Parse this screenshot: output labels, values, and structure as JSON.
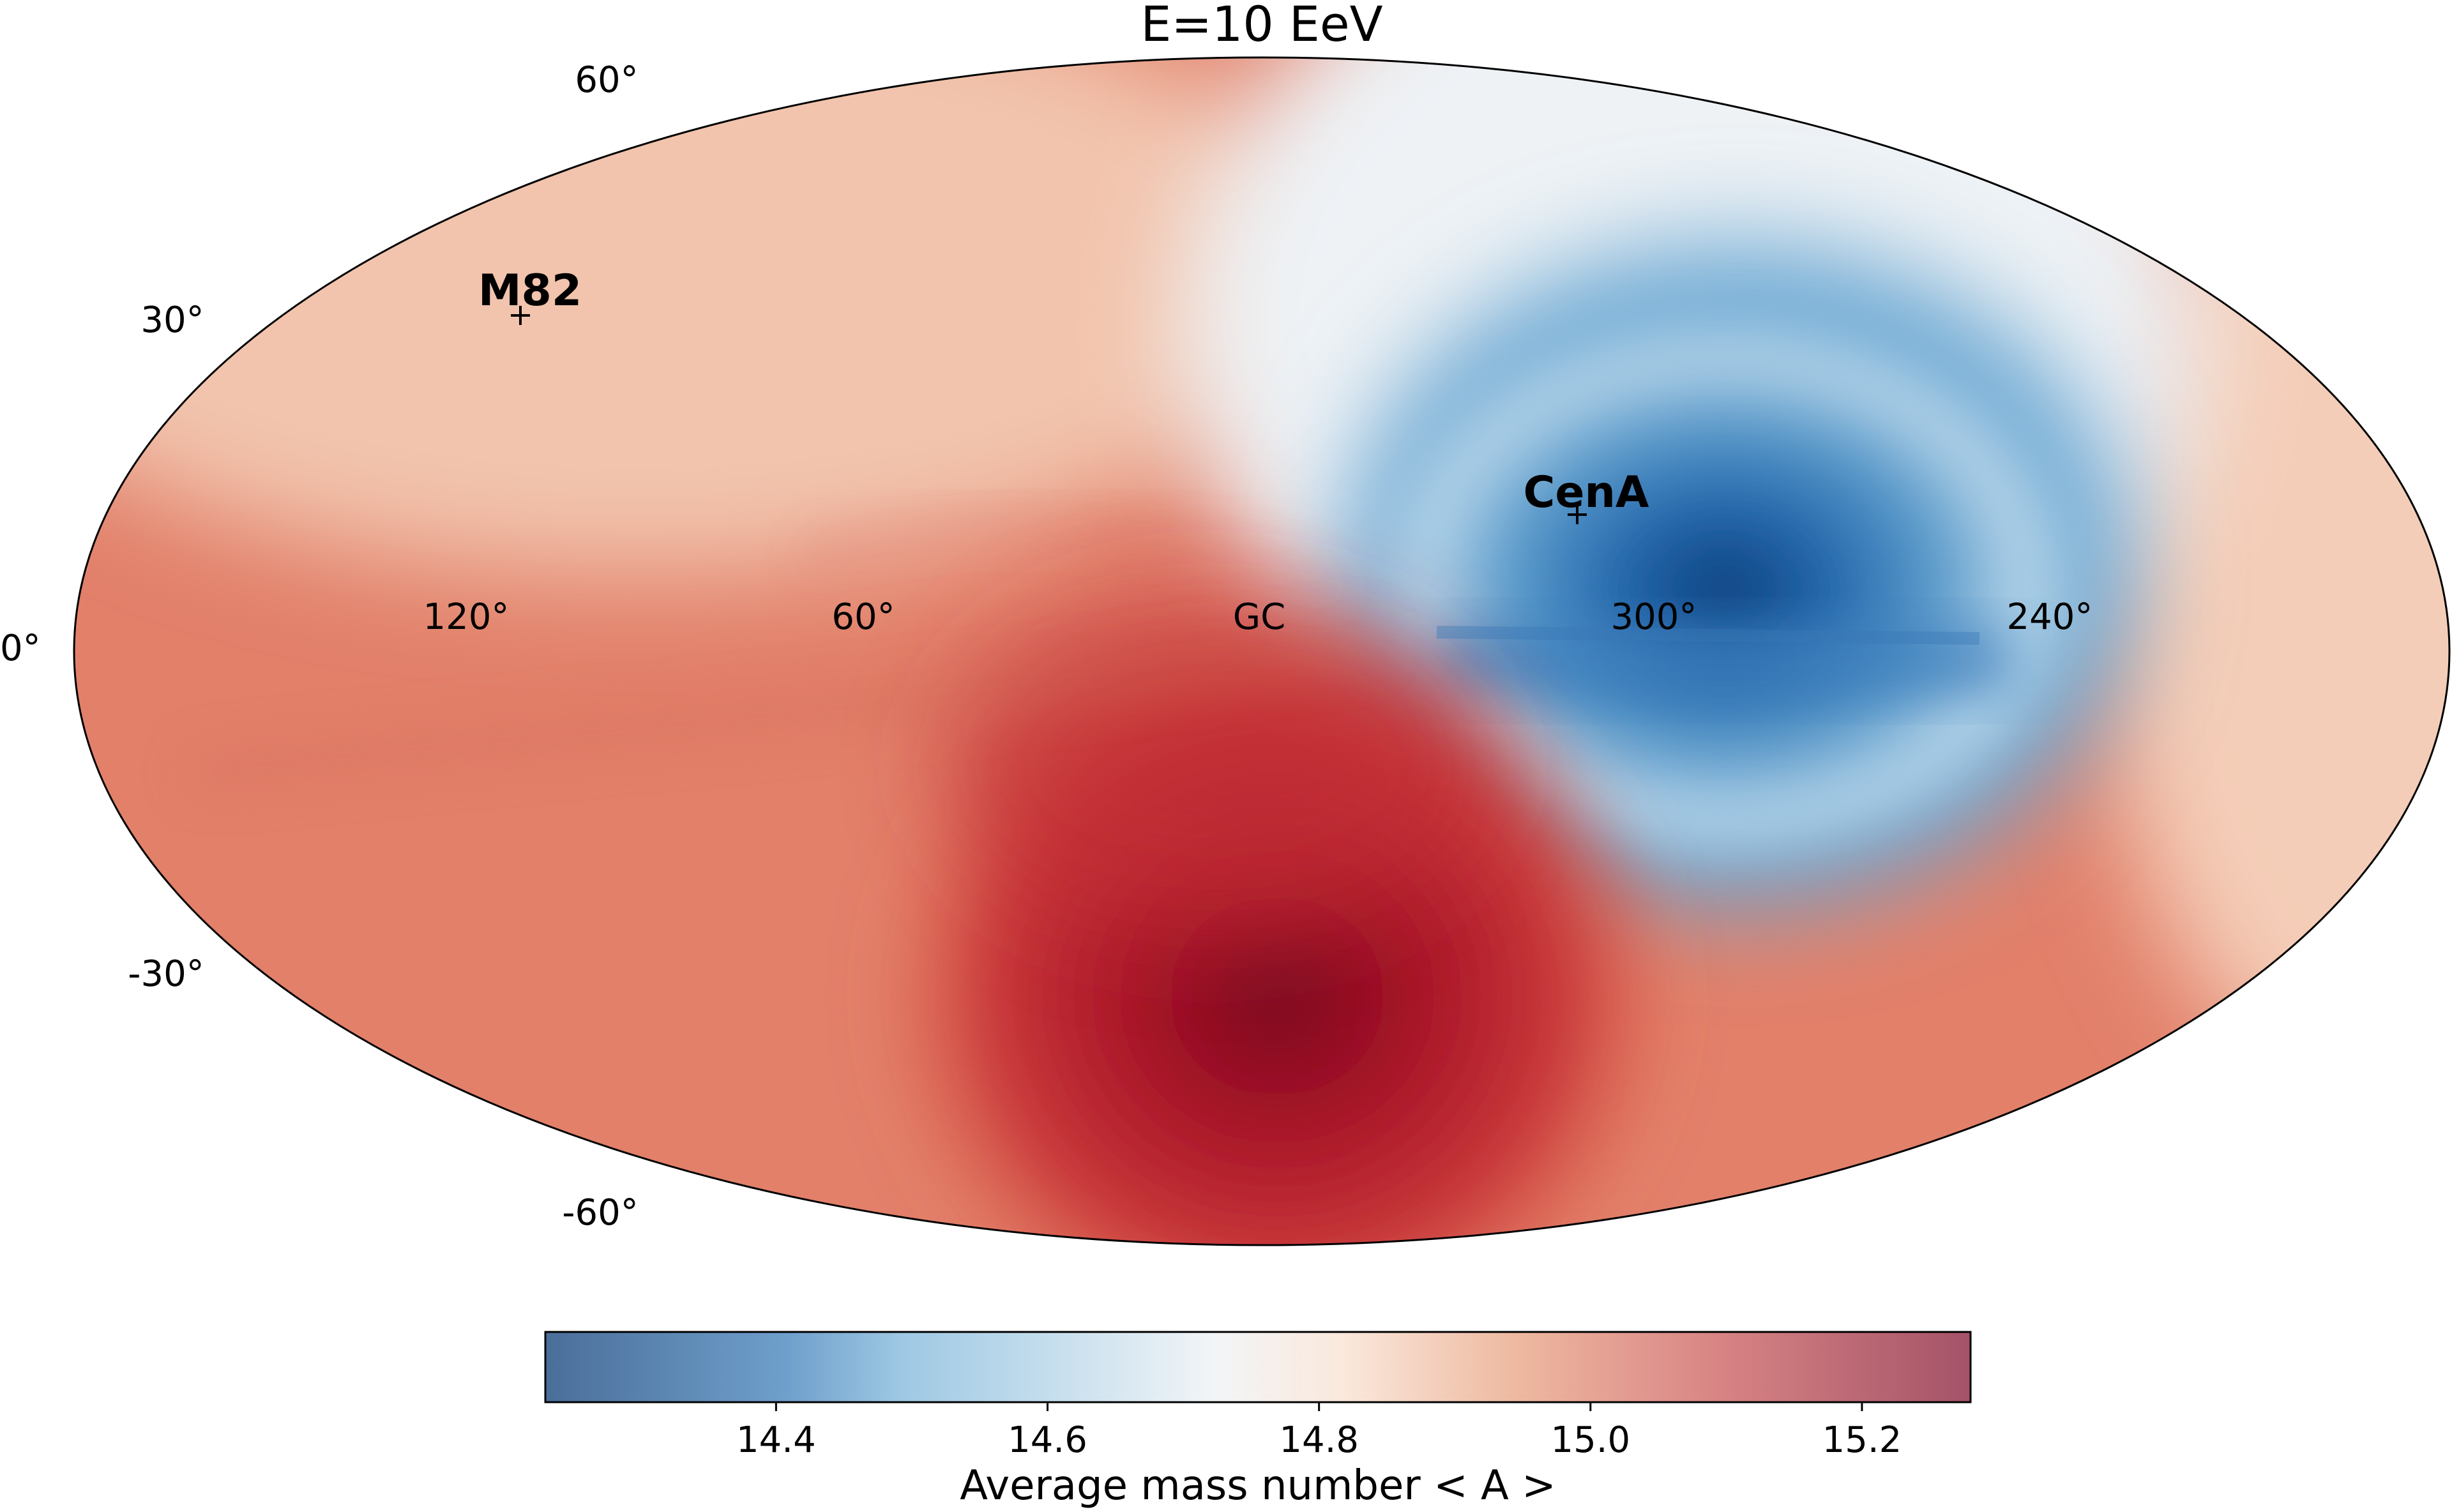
{
  "chart_data": {
    "type": "heatmap",
    "projection": "mollweide",
    "coordinate_system": "galactic",
    "title": "E=10 EeV",
    "colormap": "RdBu_r",
    "lat_ticks": [
      {
        "value": 60,
        "label": "60°"
      },
      {
        "value": 30,
        "label": "30°"
      },
      {
        "value": 0,
        "label": "0°"
      },
      {
        "value": -30,
        "label": "-30°"
      },
      {
        "value": -60,
        "label": "-60°"
      }
    ],
    "lon_ticks": [
      {
        "value": 120,
        "label": "120°"
      },
      {
        "value": 60,
        "label": "60°"
      },
      {
        "value": 0,
        "label": "GC"
      },
      {
        "value": 300,
        "label": "300°"
      },
      {
        "value": 240,
        "label": "240°"
      }
    ],
    "sources": [
      {
        "name": "M82",
        "lon": 141.4,
        "lat": 40.6
      },
      {
        "name": "CenA",
        "lon": 309.5,
        "lat": 19.4
      }
    ],
    "regions": [
      {
        "description": "blue low-mass region",
        "lon": 300,
        "lat": 15,
        "value": 14.25
      },
      {
        "description": "dark red high-mass region",
        "lon": 20,
        "lat": -45,
        "value": 15.28
      }
    ],
    "colorbar": {
      "min": 14.23,
      "max": 15.28,
      "ticks": [
        {
          "value": 14.4,
          "label": "14.4"
        },
        {
          "value": 14.6,
          "label": "14.6"
        },
        {
          "value": 14.8,
          "label": "14.8"
        },
        {
          "value": 15.0,
          "label": "15.0"
        },
        {
          "value": 15.2,
          "label": "15.2"
        }
      ],
      "label": "Average mass number < A >"
    }
  }
}
